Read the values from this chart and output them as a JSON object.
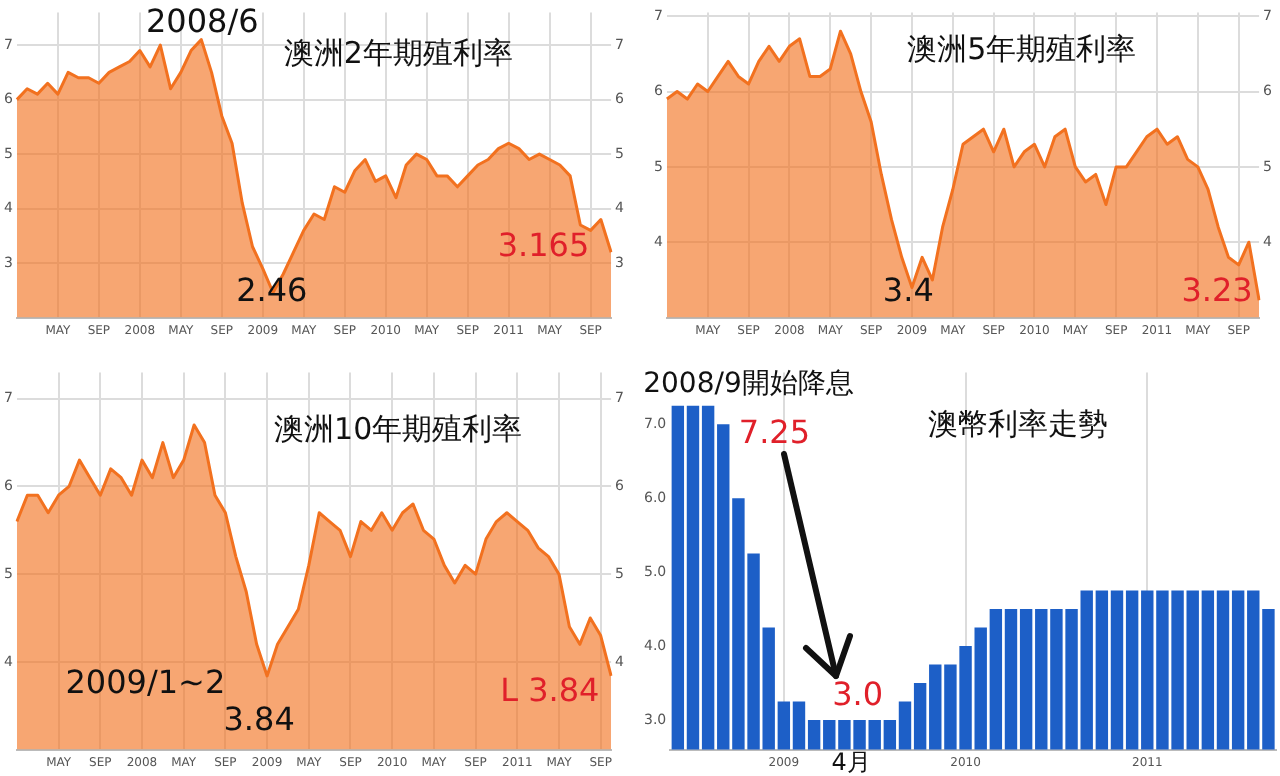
{
  "chart_data": [
    {
      "type": "area",
      "title": "澳洲2年期殖利率",
      "annotations": [
        "2008/6",
        "2.46",
        "3.165"
      ],
      "legend": false,
      "marker": "none",
      "grid": true,
      "categories": [
        null,
        null,
        null,
        null,
        "MAY",
        null,
        null,
        null,
        "SEP",
        null,
        null,
        null,
        "2008",
        null,
        null,
        null,
        "MAY",
        null,
        null,
        null,
        "SEP",
        null,
        null,
        null,
        "2009",
        null,
        null,
        null,
        "MAY",
        null,
        null,
        null,
        "SEP",
        null,
        null,
        null,
        "2010",
        null,
        null,
        null,
        "MAY",
        null,
        null,
        null,
        "SEP",
        null,
        null,
        null,
        "2011",
        null,
        null,
        null,
        "MAY",
        null,
        null,
        null,
        "SEP",
        null,
        null
      ],
      "series": [
        {
          "color": "#f2711f",
          "values": [
            6.0,
            6.2,
            6.1,
            6.3,
            6.1,
            6.5,
            6.4,
            6.4,
            6.3,
            6.5,
            6.6,
            6.7,
            6.9,
            6.6,
            7.0,
            6.2,
            6.5,
            6.9,
            7.1,
            6.5,
            5.7,
            5.2,
            4.1,
            3.3,
            2.9,
            2.46,
            2.8,
            3.2,
            3.6,
            3.9,
            3.8,
            4.4,
            4.3,
            4.7,
            4.9,
            4.5,
            4.6,
            4.2,
            4.8,
            5.0,
            4.9,
            4.6,
            4.6,
            4.4,
            4.6,
            4.8,
            4.9,
            5.1,
            5.2,
            5.1,
            4.9,
            5.0,
            4.9,
            4.8,
            4.6,
            3.7,
            3.6,
            3.8,
            3.2
          ]
        }
      ],
      "ylim": [
        2.0,
        7.6
      ],
      "yticks": [
        3,
        4,
        5,
        6,
        7
      ],
      "y2lim": [
        2.0,
        7.6
      ],
      "y2ticks": [
        3,
        4,
        5,
        6,
        7
      ]
    },
    {
      "type": "area",
      "title": "澳洲5年期殖利率",
      "annotations": [
        "3.4",
        "3.23"
      ],
      "legend": false,
      "marker": "none",
      "grid": true,
      "categories": [
        null,
        null,
        null,
        null,
        "MAY",
        null,
        null,
        null,
        "SEP",
        null,
        null,
        null,
        "2008",
        null,
        null,
        null,
        "MAY",
        null,
        null,
        null,
        "SEP",
        null,
        null,
        null,
        "2009",
        null,
        null,
        null,
        "MAY",
        null,
        null,
        null,
        "SEP",
        null,
        null,
        null,
        "2010",
        null,
        null,
        null,
        "MAY",
        null,
        null,
        null,
        "SEP",
        null,
        null,
        null,
        "2011",
        null,
        null,
        null,
        "MAY",
        null,
        null,
        null,
        "SEP",
        null,
        null
      ],
      "series": [
        {
          "color": "#f2711f",
          "values": [
            5.9,
            6.0,
            5.9,
            6.1,
            6.0,
            6.2,
            6.4,
            6.2,
            6.1,
            6.4,
            6.6,
            6.4,
            6.6,
            6.7,
            6.2,
            6.2,
            6.3,
            6.8,
            6.5,
            6.0,
            5.6,
            4.9,
            4.3,
            3.8,
            3.4,
            3.8,
            3.5,
            4.2,
            4.7,
            5.3,
            5.4,
            5.5,
            5.2,
            5.5,
            5.0,
            5.2,
            5.3,
            5.0,
            5.4,
            5.5,
            5.0,
            4.8,
            4.9,
            4.5,
            5.0,
            5.0,
            5.2,
            5.4,
            5.5,
            5.3,
            5.4,
            5.1,
            5.0,
            4.7,
            4.2,
            3.8,
            3.7,
            4.0,
            3.23
          ]
        }
      ],
      "ylim": [
        3.0,
        7.05
      ],
      "yticks": [
        4,
        5,
        6,
        7
      ],
      "y2lim": [
        3.0,
        7.05
      ],
      "y2ticks": [
        4,
        5,
        6,
        7
      ]
    },
    {
      "type": "area",
      "title": "澳洲10年期殖利率",
      "annotations": [
        "2009/1~2",
        "3.84",
        "L 3.84"
      ],
      "legend": false,
      "marker": "none",
      "grid": true,
      "categories": [
        null,
        null,
        null,
        null,
        "MAY",
        null,
        null,
        null,
        "SEP",
        null,
        null,
        null,
        "2008",
        null,
        null,
        null,
        "MAY",
        null,
        null,
        null,
        "SEP",
        null,
        null,
        null,
        "2009",
        null,
        null,
        null,
        "MAY",
        null,
        null,
        null,
        "SEP",
        null,
        null,
        null,
        "2010",
        null,
        null,
        null,
        "MAY",
        null,
        null,
        null,
        "SEP",
        null,
        null,
        null,
        "2011",
        null,
        null,
        null,
        "MAY",
        null,
        null,
        null,
        "SEP",
        null
      ],
      "series": [
        {
          "color": "#f2711f",
          "values": [
            5.6,
            5.9,
            5.9,
            5.7,
            5.9,
            6.0,
            6.3,
            6.1,
            5.9,
            6.2,
            6.1,
            5.9,
            6.3,
            6.1,
            6.5,
            6.1,
            6.3,
            6.7,
            6.5,
            5.9,
            5.7,
            5.2,
            4.8,
            4.2,
            3.84,
            4.2,
            4.4,
            4.6,
            5.1,
            5.7,
            5.6,
            5.5,
            5.2,
            5.6,
            5.5,
            5.7,
            5.5,
            5.7,
            5.8,
            5.5,
            5.4,
            5.1,
            4.9,
            5.1,
            5.0,
            5.4,
            5.6,
            5.7,
            5.6,
            5.5,
            5.3,
            5.2,
            5.0,
            4.4,
            4.2,
            4.5,
            4.3,
            3.84
          ]
        }
      ],
      "ylim": [
        3.0,
        7.3
      ],
      "yticks": [
        4,
        5,
        6,
        7
      ],
      "y2lim": [
        3.0,
        7.3
      ],
      "y2ticks": [
        4,
        5,
        6,
        7
      ]
    },
    {
      "type": "bar",
      "title": "澳幣利率走勢",
      "annotations": [
        "2008/9開始降息",
        "7.25",
        "3.0",
        "4月"
      ],
      "legend": false,
      "grid": "x",
      "categories": [
        null,
        null,
        null,
        null,
        null,
        null,
        null,
        "2009",
        null,
        null,
        null,
        null,
        null,
        null,
        null,
        null,
        null,
        null,
        null,
        "2010",
        null,
        null,
        null,
        null,
        null,
        null,
        null,
        null,
        null,
        null,
        null,
        "2011",
        null,
        null,
        null,
        null,
        null,
        null,
        null,
        null
      ],
      "series": [
        {
          "color": "#1d5fc7",
          "values": [
            7.25,
            7.25,
            7.25,
            7.0,
            6.0,
            5.25,
            4.25,
            3.25,
            3.25,
            3.0,
            3.0,
            3.0,
            3.0,
            3.0,
            3.0,
            3.25,
            3.5,
            3.75,
            3.75,
            4.0,
            4.25,
            4.5,
            4.5,
            4.5,
            4.5,
            4.5,
            4.5,
            4.75,
            4.75,
            4.75,
            4.75,
            4.75,
            4.75,
            4.75,
            4.75,
            4.75,
            4.75,
            4.75,
            4.75,
            4.5
          ]
        }
      ],
      "ylim": [
        2.6,
        7.7
      ],
      "yticks": [
        {
          "value": 3,
          "label": "3.0"
        },
        {
          "value": 4,
          "label": "4.0"
        },
        {
          "value": 5,
          "label": "5.0"
        },
        {
          "value": 6,
          "label": "6.0"
        },
        {
          "value": 7,
          "label": "7.0"
        }
      ]
    }
  ]
}
